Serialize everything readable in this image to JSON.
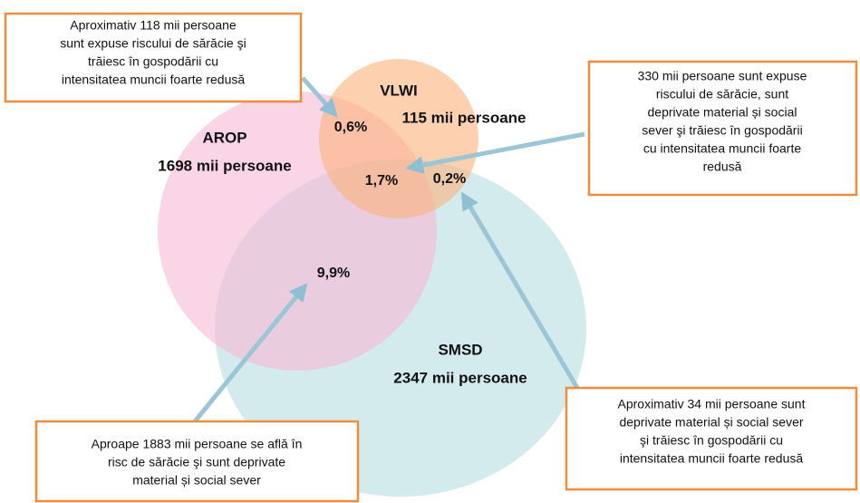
{
  "sets": [
    {
      "label": "AROP",
      "count": "1698 mii persoane"
    },
    {
      "label": "VLWI",
      "count": "115 mii persoane"
    },
    {
      "label": "SMSD",
      "count": "2347 mii persoane"
    }
  ],
  "regions": {
    "arop_vlwi": "0,6%",
    "all_three": "1,7%",
    "vlwi_smsd": "0,2%",
    "arop_smsd": "9,9%"
  },
  "callouts": [
    {
      "lines": [
        "Aproximativ 118 mii persoane",
        "sunt expuse riscului de sărăcie şi",
        "trăiesc în gospodării cu",
        "intensitatea muncii foarte redusă"
      ]
    },
    {
      "lines": [
        "330 mii persoane sunt expuse",
        "riscului de sărăcie, sunt",
        "deprivate material și social",
        "sever şi trăiesc în gospodării",
        "cu intensitatea muncii foarte",
        "redusă"
      ]
    },
    {
      "lines": [
        "Aproximativ 34 mii persoane sunt",
        "deprivate material și social sever",
        "şi trăiesc în gospodării cu",
        "intensitatea muncii foarte redusă"
      ]
    },
    {
      "lines": [
        "Aproape 1883 mii persoane se află în",
        "risc de sărăcie şi sunt deprivate",
        "material și social sever"
      ]
    }
  ]
}
